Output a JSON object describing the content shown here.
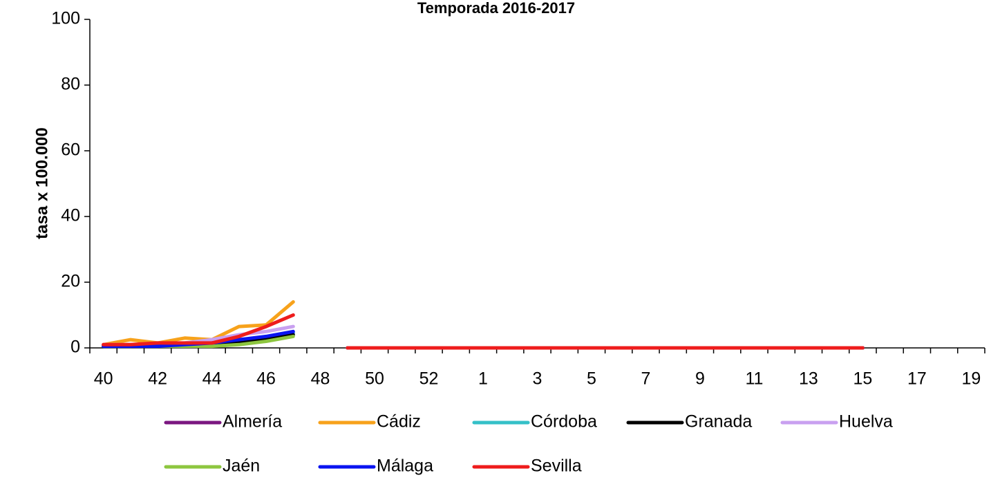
{
  "chart_data": {
    "type": "line",
    "title": "Temporada 2016-2017",
    "y_label": "tasa x 100.000",
    "categories": [
      "40",
      null,
      "42",
      null,
      "44",
      null,
      "46",
      null,
      "48",
      null,
      "50",
      null,
      "52",
      null,
      "1",
      null,
      "3",
      null,
      "5",
      null,
      "7",
      null,
      "9",
      null,
      "11",
      null,
      "13",
      null,
      "15",
      null,
      "17",
      null,
      "19"
    ],
    "ylim": [
      0,
      100
    ],
    "yticks": [
      0,
      20,
      40,
      60,
      80,
      100
    ],
    "grid": false,
    "legend": "bottom",
    "series": [
      {
        "name": "Almería",
        "color": "#7b1780",
        "values": [
          0.5,
          0.5,
          0.5,
          1,
          1,
          2,
          3,
          4.5,
          null,
          0,
          0,
          0,
          0,
          0,
          0,
          0,
          0,
          0,
          0,
          0,
          0,
          0,
          0,
          0,
          0,
          0,
          0,
          0,
          0,
          null,
          null,
          null,
          null
        ]
      },
      {
        "name": "Cádiz",
        "color": "#f7a21b",
        "values": [
          1,
          2.5,
          1.5,
          3,
          2.5,
          6.5,
          7,
          14,
          null,
          0,
          0,
          0,
          0,
          0,
          0,
          0,
          0,
          0,
          0,
          0,
          0,
          0,
          0,
          0,
          0,
          0,
          0,
          0,
          0,
          null,
          null,
          null,
          null
        ]
      },
      {
        "name": "Córdoba",
        "color": "#35c0c8",
        "values": [
          0.5,
          0.5,
          1,
          1,
          1,
          2,
          3,
          4.5,
          null,
          0,
          0,
          0,
          0,
          0,
          0,
          0,
          0,
          0,
          0,
          0,
          0,
          0,
          0,
          0,
          0,
          0,
          0,
          0,
          0,
          null,
          null,
          null,
          null
        ]
      },
      {
        "name": "Granada",
        "color": "#000000",
        "values": [
          0.5,
          0.5,
          0.5,
          0.5,
          0.5,
          1.5,
          2.5,
          4,
          null,
          0,
          0,
          0,
          0,
          0,
          0,
          0,
          0,
          0,
          0,
          0,
          0,
          0,
          0,
          0,
          0,
          0,
          0,
          0,
          0,
          null,
          null,
          null,
          null
        ]
      },
      {
        "name": "Huelva",
        "color": "#c9a0f0",
        "values": [
          1,
          1,
          1,
          1.5,
          2.5,
          4,
          5,
          6.5,
          null,
          0,
          0,
          0,
          0,
          0,
          0,
          0,
          0,
          0,
          0,
          0,
          0,
          0,
          0,
          0,
          0,
          0,
          0,
          0,
          0,
          null,
          null,
          null,
          null
        ]
      },
      {
        "name": "Jaén",
        "color": "#8dc63f",
        "values": [
          0.5,
          0.5,
          0.5,
          0.5,
          0.5,
          1,
          2,
          3.5,
          null,
          0,
          0,
          0,
          0,
          0,
          0,
          0,
          0,
          0,
          0,
          0,
          0,
          0,
          0,
          0,
          0,
          0,
          0,
          0,
          0,
          null,
          null,
          null,
          null
        ]
      },
      {
        "name": "Málaga",
        "color": "#0a14f0",
        "values": [
          0.5,
          0.5,
          0.5,
          1,
          1.5,
          2.5,
          3.5,
          5,
          null,
          0,
          0,
          0,
          0,
          0,
          0,
          0,
          0,
          0,
          0,
          0,
          0,
          0,
          0,
          0,
          0,
          0,
          0,
          0,
          0,
          null,
          null,
          null,
          null
        ]
      },
      {
        "name": "Sevilla",
        "color": "#ee1c1c",
        "values": [
          1,
          1,
          1.5,
          1.5,
          1.5,
          3.5,
          6.5,
          10,
          null,
          0,
          0,
          0,
          0,
          0,
          0,
          0,
          0,
          0,
          0,
          0,
          0,
          0,
          0,
          0,
          0,
          0,
          0,
          0,
          0,
          null,
          null,
          null,
          null
        ]
      }
    ]
  }
}
